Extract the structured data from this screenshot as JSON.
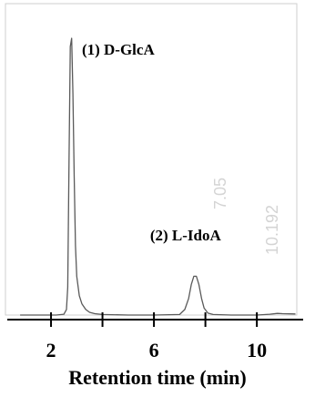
{
  "chart_data": {
    "type": "line",
    "xlabel": "Retention time (min)",
    "ylabel": "",
    "xlim": [
      0.3,
      11.8
    ],
    "ylim": [
      0,
      100
    ],
    "xticks": [
      {
        "value": 2,
        "label": "2"
      },
      {
        "value": 4,
        "label": ""
      },
      {
        "value": 6,
        "label": "6"
      },
      {
        "value": 8,
        "label": ""
      },
      {
        "value": 10,
        "label": "10"
      }
    ],
    "series": [
      {
        "x": [
          0.8,
          1.5,
          2.2,
          2.5,
          2.6,
          2.65,
          2.7,
          2.75,
          2.8,
          2.85,
          2.9,
          2.95,
          3.0,
          3.1,
          3.2,
          3.35,
          3.5,
          3.7,
          4.0,
          5.0,
          6.0,
          7.0,
          7.2,
          7.35,
          7.45,
          7.55,
          7.65,
          7.75,
          7.85,
          7.95,
          8.1,
          8.3,
          9.0,
          10.0,
          10.5,
          10.8,
          11.0,
          11.5
        ],
        "y": [
          0,
          0,
          0,
          0.3,
          2,
          10,
          55,
          97,
          100,
          80,
          50,
          25,
          14,
          7,
          4,
          2,
          1,
          0.5,
          0.2,
          0,
          0,
          0.2,
          2,
          6,
          11,
          14,
          14,
          11,
          6,
          2.5,
          0.7,
          0.2,
          0,
          0,
          0.3,
          0.6,
          0.5,
          0.4
        ]
      }
    ],
    "annotations": [
      {
        "text": "(1) D-GlcA",
        "x": 3.2,
        "y": 94
      },
      {
        "text": "(2) L-IdoA",
        "x": 5.85,
        "y": 27
      }
    ],
    "background_stamps": [
      "7.05",
      "10.192"
    ],
    "colors": {
      "trace": "#5a5a5a",
      "axis": "#000000",
      "frame": "#cfcfcf",
      "stamp": "#d4d4d4",
      "label": "#000000"
    }
  }
}
